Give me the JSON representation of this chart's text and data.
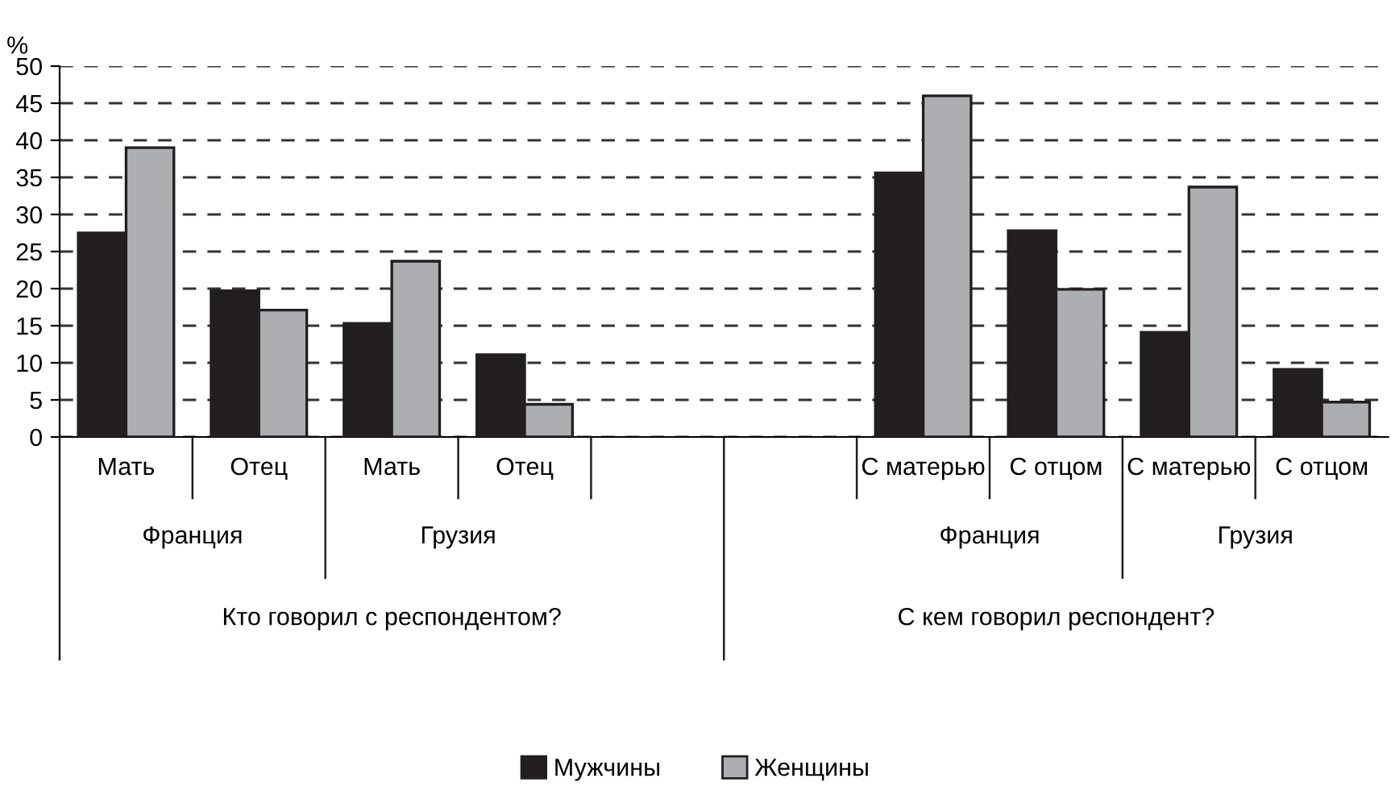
{
  "chart_data": {
    "type": "bar",
    "ylabel": "%",
    "categories": [
      "Мать",
      "Отец",
      "Мать",
      "Отец",
      null,
      null,
      "С матерью",
      "С отцом",
      "С матерью",
      "С отцом"
    ],
    "series": [
      {
        "name": "Мужчины",
        "color": "#231f20",
        "values": [
          27.5,
          19.7,
          15.3,
          11.1,
          null,
          null,
          35.6,
          27.8,
          14.1,
          9.1
        ]
      },
      {
        "name": "Женщины",
        "color": "#adaeb1",
        "values": [
          39.0,
          17.1,
          23.7,
          4.4,
          null,
          null,
          46.0,
          19.9,
          33.7,
          4.7
        ]
      }
    ],
    "ylim": [
      0,
      50
    ],
    "yticks": [
      0,
      5,
      10,
      15,
      20,
      25,
      30,
      35,
      40,
      45,
      50
    ],
    "grid": "y",
    "legend": "bottom",
    "annotations": [
      "Франция",
      "Грузия",
      "Франция",
      "Грузия",
      "Кто говорил с респондентом?",
      "С кем говорил респондент?"
    ]
  }
}
